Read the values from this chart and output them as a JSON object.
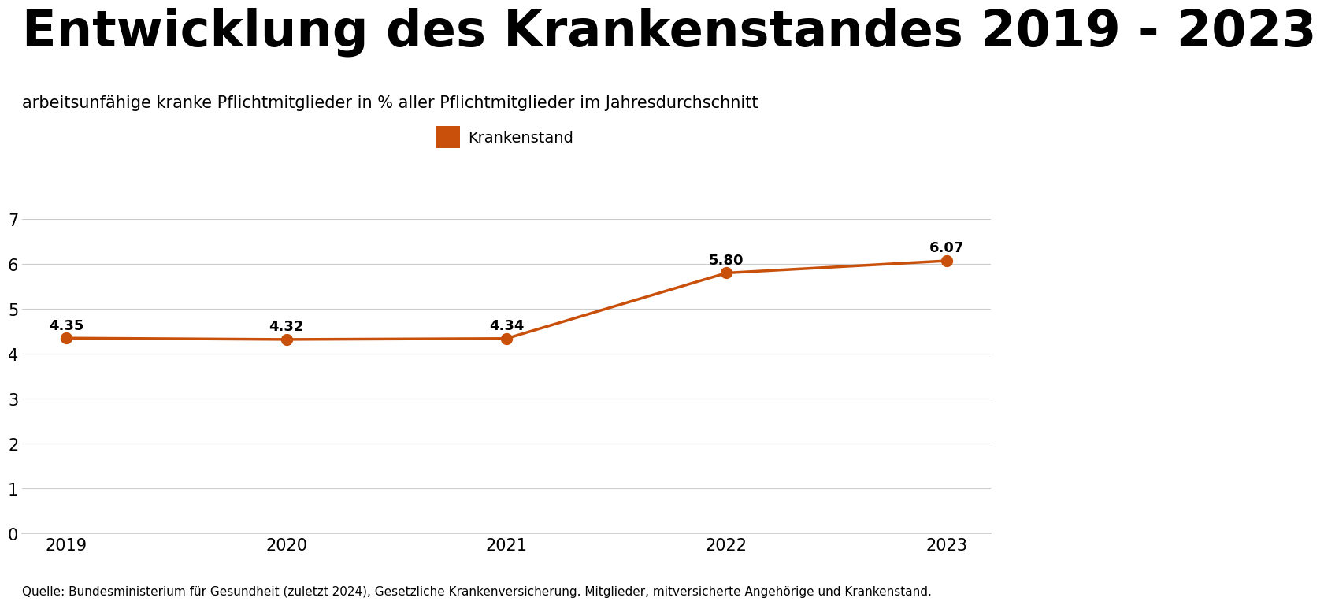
{
  "title": "Entwicklung des Krankenstandes 2019 - 2023",
  "subtitle": "arbeitsunfähige kranke Pflichtmitglieder in % aller Pflichtmitglieder im Jahresdurchschnitt",
  "footnote": "Quelle: Bundesministerium für Gesundheit (zuletzt 2024), Gesetzliche Krankenversicherung. Mitglieder, mitversicherte Angehörige und Krankenstand.",
  "legend_label": "Krankenstand",
  "years": [
    2019,
    2020,
    2021,
    2022,
    2023
  ],
  "values": [
    4.35,
    4.32,
    4.34,
    5.8,
    6.07
  ],
  "line_color": "#C8500A",
  "marker_color": "#C8500A",
  "background_color": "#FFFFFF",
  "ylim": [
    0,
    7
  ],
  "yticks": [
    0,
    1,
    2,
    3,
    4,
    5,
    6,
    7
  ],
  "grid_color": "#CCCCCC",
  "title_fontsize": 46,
  "subtitle_fontsize": 15,
  "footnote_fontsize": 11,
  "tick_fontsize": 15,
  "label_fontsize": 13,
  "legend_fontsize": 14,
  "line_width": 2.5,
  "marker_size": 10
}
